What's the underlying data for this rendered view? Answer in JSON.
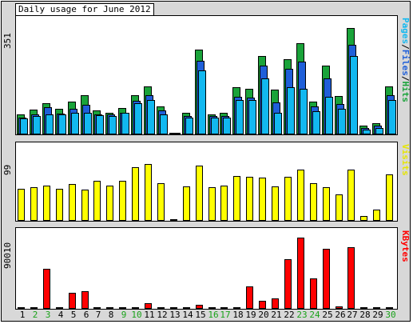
{
  "title": "Daily usage for June 2012",
  "colors": {
    "hits": "#1aa33a",
    "files": "#1f5fd9",
    "pages": "#12b8f0",
    "visits": "#ffff00",
    "kbytes": "#ff0000",
    "weekday_label": "#000000",
    "weekend_label": "#1aa31a"
  },
  "chart_data": [
    {
      "type": "bar",
      "title": "Daily usage for June 2012",
      "ymax_label": "351",
      "ylim": [
        0,
        351
      ],
      "right_label_parts": [
        "Pages",
        "Files",
        "Hits"
      ],
      "categories": [
        "1",
        "2",
        "3",
        "4",
        "5",
        "6",
        "7",
        "8",
        "9",
        "10",
        "11",
        "12",
        "13",
        "14",
        "15",
        "16",
        "17",
        "18",
        "19",
        "20",
        "21",
        "22",
        "23",
        "24",
        "25",
        "26",
        "27",
        "28",
        "29",
        "30"
      ],
      "series": [
        {
          "name": "Hits",
          "values": [
            65,
            80,
            100,
            82,
            105,
            125,
            76,
            70,
            85,
            125,
            155,
            90,
            6,
            70,
            272,
            65,
            70,
            152,
            145,
            252,
            143,
            240,
            292,
            106,
            220,
            123,
            342,
            28,
            37,
            155
          ]
        },
        {
          "name": "Files",
          "values": [
            55,
            63,
            88,
            67,
            82,
            95,
            65,
            65,
            70,
            108,
            125,
            76,
            5,
            60,
            235,
            58,
            60,
            120,
            118,
            220,
            103,
            210,
            233,
            90,
            180,
            98,
            288,
            20,
            28,
            125
          ]
        },
        {
          "name": "Pages",
          "values": [
            52,
            60,
            65,
            65,
            70,
            70,
            62,
            60,
            68,
            100,
            110,
            65,
            5,
            55,
            205,
            55,
            55,
            110,
            110,
            180,
            70,
            150,
            145,
            75,
            120,
            83,
            250,
            15,
            20,
            110
          ]
        }
      ],
      "weekend_days": [
        "2",
        "3",
        "9",
        "10",
        "16",
        "17",
        "23",
        "24",
        "30"
      ]
    },
    {
      "type": "bar",
      "ymax_label": "99",
      "ylim": [
        0,
        99
      ],
      "right_label": "Visits",
      "categories": [
        "1",
        "2",
        "3",
        "4",
        "5",
        "6",
        "7",
        "8",
        "9",
        "10",
        "11",
        "12",
        "13",
        "14",
        "15",
        "16",
        "17",
        "18",
        "19",
        "20",
        "21",
        "22",
        "23",
        "24",
        "25",
        "26",
        "27",
        "28",
        "29",
        "30"
      ],
      "series": [
        {
          "name": "Visits",
          "values": [
            46,
            48,
            50,
            45,
            52,
            44,
            57,
            50,
            57,
            76,
            81,
            53,
            2,
            49,
            78,
            48,
            50,
            64,
            63,
            61,
            49,
            63,
            73,
            53,
            48,
            38,
            73,
            7,
            16,
            66
          ]
        }
      ]
    },
    {
      "type": "bar",
      "ymax_label": "90010",
      "ylim": [
        0,
        90010
      ],
      "right_label": "KBytes",
      "categories": [
        "1",
        "2",
        "3",
        "4",
        "5",
        "6",
        "7",
        "8",
        "9",
        "10",
        "11",
        "12",
        "13",
        "14",
        "15",
        "16",
        "17",
        "18",
        "19",
        "20",
        "21",
        "22",
        "23",
        "24",
        "25",
        "26",
        "27",
        "28",
        "29",
        "30"
      ],
      "series": [
        {
          "name": "KBytes",
          "values": [
            1200,
            2200,
            50000,
            1200,
            20000,
            22000,
            1200,
            1200,
            1200,
            1500,
            7500,
            1200,
            1200,
            1200,
            5500,
            1200,
            1200,
            2200,
            28000,
            10500,
            13500,
            62000,
            89000,
            38000,
            75000,
            3200,
            77000,
            1200,
            1200,
            2200
          ]
        }
      ]
    }
  ]
}
